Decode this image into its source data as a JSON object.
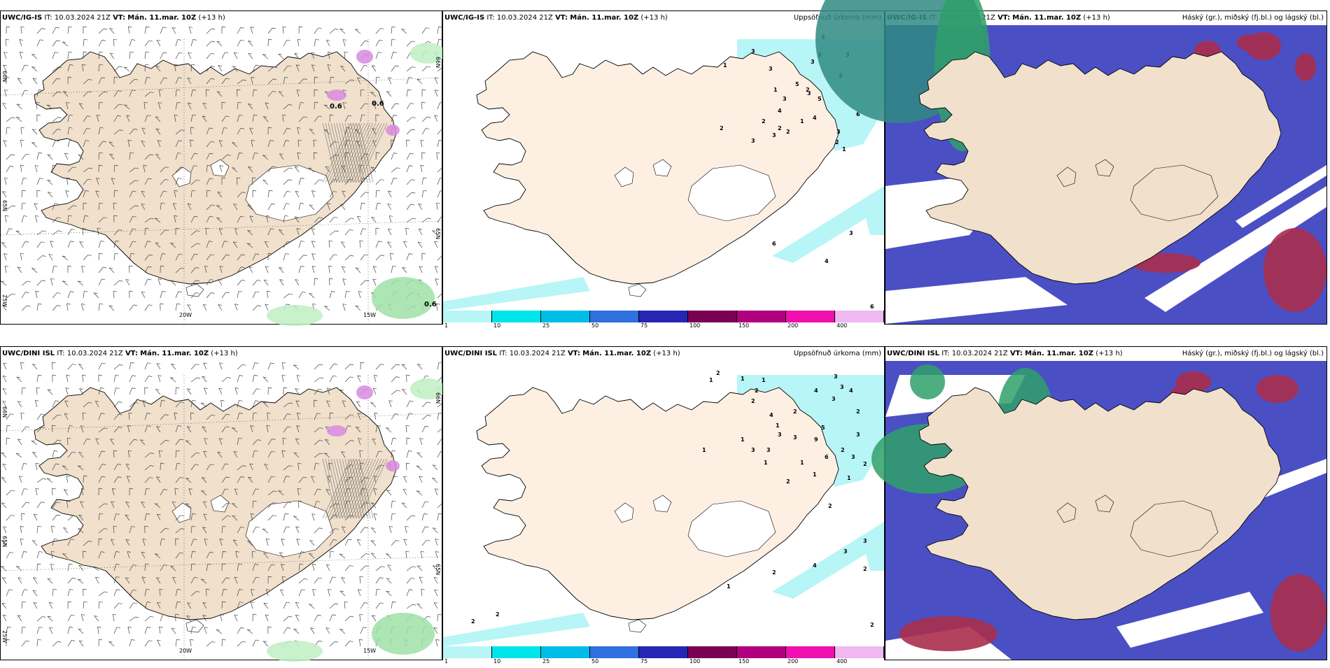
{
  "colors": {
    "land": "#f0e0cc",
    "precip_land": "#fdf0e2",
    "sea": "#ffffff",
    "cloud_high": "#4b4fc4",
    "cloud_mid": "#aa2d4d",
    "cloud_low": "#2fa06a",
    "precip_light": "#b8f5f6"
  },
  "panels": [
    {
      "id": "wind-ig",
      "model": "UWC/IG-IS",
      "it_label": "IT:",
      "it": "10.03.2024 21Z",
      "vt_label": "VT:",
      "vt": "Mán. 11.mar. 10Z",
      "lead": "(+13 h)",
      "product": "",
      "type": "wind",
      "labels": {
        "lat_left": [
          "66N",
          "65N"
        ],
        "lat_right": [
          "65N",
          "66N"
        ],
        "lon": [
          "20W",
          "15W"
        ],
        "corner": "25W",
        "values": [
          "0.6",
          "0.6",
          "0.6"
        ]
      }
    },
    {
      "id": "precip-ig",
      "model": "UWC/IG-IS",
      "it_label": "IT:",
      "it": "10.03.2024 21Z",
      "vt_label": "VT:",
      "vt": "Mán. 11.mar. 10Z",
      "lead": "(+13 h)",
      "product": "Uppsöfnuð úrkoma (mm)",
      "type": "precip",
      "numbers": [
        "3",
        "3",
        "3",
        "2",
        "1",
        "2",
        "3",
        "3",
        "2",
        "3",
        "3",
        "5",
        "4",
        "2",
        "3",
        "2",
        "3",
        "6",
        "2",
        "1",
        "3",
        "1",
        "2",
        "3",
        "1",
        "5",
        "4",
        "3",
        "4",
        "6",
        "6"
      ]
    },
    {
      "id": "cloud-ig",
      "model": "UWC/IG-IS",
      "it_label": "IT:",
      "it": "10.03.2024 21Z",
      "vt_label": "VT:",
      "vt": "Mán. 11.mar. 10Z",
      "lead": "(+13 h)",
      "product": "Háský (gr.), miðský (fj.bl.) og lágský (bl.)",
      "type": "cloud"
    },
    {
      "id": "wind-dini",
      "model": "UWC/DINI ISL",
      "it_label": "IT:",
      "it": "10.03.2024 21Z",
      "vt_label": "VT:",
      "vt": "Mán. 11.mar. 10Z",
      "lead": "(+13 h)",
      "product": "",
      "type": "wind",
      "labels": {
        "lat_left": [
          "66N",
          "65N"
        ],
        "lat_right": [
          "65N",
          "66N"
        ],
        "lon": [
          "20W",
          "15W"
        ],
        "corner": "25W",
        "values": []
      }
    },
    {
      "id": "precip-dini",
      "model": "UWC/DINI ISL",
      "it_label": "IT:",
      "it": "10.03.2024 21Z",
      "vt_label": "VT:",
      "vt": "Mán. 11.mar. 10Z",
      "lead": "(+13 h)",
      "product": "Uppsöfnuð úrkoma (mm)",
      "type": "precip",
      "numbers": [
        "2",
        "1",
        "1",
        "1",
        "2",
        "4",
        "3",
        "3",
        "4",
        "2",
        "3",
        "2",
        "2",
        "4",
        "1",
        "3",
        "3",
        "5",
        "3",
        "9",
        "1",
        "3",
        "3",
        "2",
        "3",
        "1",
        "1",
        "1",
        "2",
        "6",
        "1",
        "1",
        "2",
        "2",
        "3",
        "3",
        "4",
        "2",
        "1",
        "2",
        "2",
        "2",
        "2"
      ]
    },
    {
      "id": "cloud-dini",
      "model": "UWC/DINI ISL",
      "it_label": "IT:",
      "it": "10.03.2024 21Z",
      "vt_label": "VT:",
      "vt": "Mán. 11.mar. 10Z",
      "lead": "(+13 h)",
      "product": "Háský (gr.), miðský (fj.bl.) og lágský (bl.)",
      "type": "cloud"
    }
  ],
  "colorbar": {
    "ticks": [
      "1",
      "10",
      "25",
      "50",
      "75",
      "100",
      "150",
      "200",
      "400"
    ],
    "colors": [
      "#b8f5f6",
      "#00e5ea",
      "#00bde8",
      "#2f6fe0",
      "#2626b4",
      "#7a0053",
      "#b0007e",
      "#f010b0",
      "#f0b8f0"
    ]
  }
}
